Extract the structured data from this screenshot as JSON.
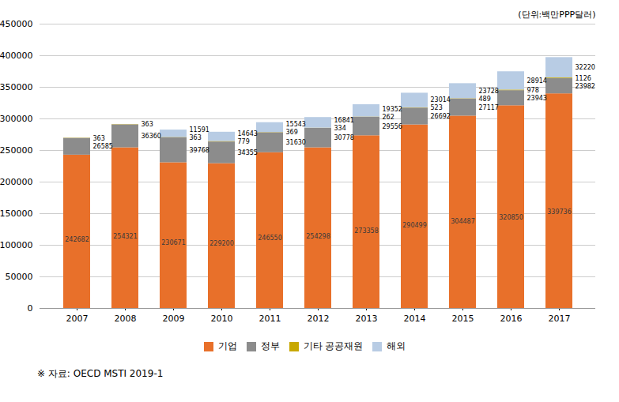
{
  "chart_data": {
    "type": "bar",
    "stacked": true,
    "ylabel": "(단위:백만PPP달러)",
    "caption": "※ 자료: OECD MSTI 2019-1",
    "categories": [
      "2007",
      "2008",
      "2009",
      "2010",
      "2011",
      "2012",
      "2013",
      "2014",
      "2015",
      "2016",
      "2017"
    ],
    "series": [
      {
        "name": "기업",
        "color": "#E8702A",
        "values": [
          242682,
          254321,
          230671,
          229200,
          246550,
          254298,
          273358,
          290499,
          304487,
          320850,
          339736
        ]
      },
      {
        "name": "정부",
        "color": "#8C8C8C",
        "values": [
          26585,
          36360,
          39768,
          34355,
          31630,
          30778,
          29556,
          26692,
          27117,
          23943,
          23982
        ]
      },
      {
        "name": "기타 공공재원",
        "color": "#C8A800",
        "values": [
          363,
          363,
          363,
          779,
          369,
          334,
          262,
          523,
          489,
          978,
          1126
        ]
      },
      {
        "name": "해외",
        "color": "#B8CCE4",
        "values": [
          0,
          0,
          11591,
          14643,
          15543,
          16841,
          19352,
          23014,
          23728,
          28914,
          32220
        ]
      }
    ],
    "ylim": [
      0,
      450000
    ],
    "yticks": [
      0,
      50000,
      100000,
      150000,
      200000,
      250000,
      300000,
      350000,
      400000,
      450000
    ],
    "grid": true,
    "legend": "bottom",
    "data_labels": true
  }
}
